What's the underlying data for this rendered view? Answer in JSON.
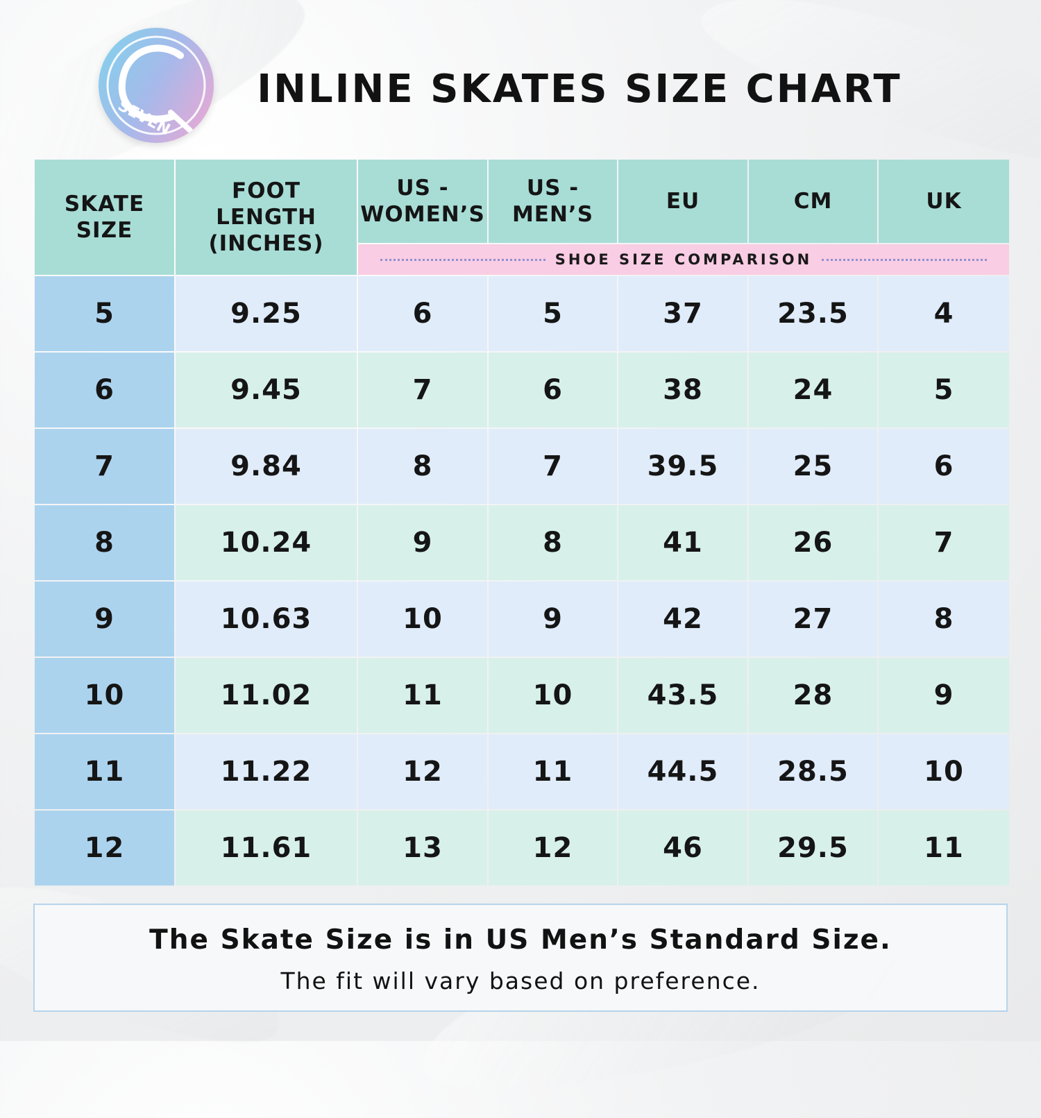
{
  "title": "INLINE SKATES SIZE CHART",
  "logo": {
    "icon": "seven-brand-logo",
    "text": "SEVEN"
  },
  "table": {
    "headers": [
      "SKATE SIZE",
      "FOOT LENGTH (INCHES)",
      "US - WOMEN’S",
      "US - MEN’S",
      "EU",
      "CM",
      "UK"
    ],
    "subheader": "SHOE SIZE COMPARISON",
    "rows": [
      [
        "5",
        "9.25",
        "6",
        "5",
        "37",
        "23.5",
        "4"
      ],
      [
        "6",
        "9.45",
        "7",
        "6",
        "38",
        "24",
        "5"
      ],
      [
        "7",
        "9.84",
        "8",
        "7",
        "39.5",
        "25",
        "6"
      ],
      [
        "8",
        "10.24",
        "9",
        "8",
        "41",
        "26",
        "7"
      ],
      [
        "9",
        "10.63",
        "10",
        "9",
        "42",
        "27",
        "8"
      ],
      [
        "10",
        "11.02",
        "11",
        "10",
        "43.5",
        "28",
        "9"
      ],
      [
        "11",
        "11.22",
        "12",
        "11",
        "44.5",
        "28.5",
        "10"
      ],
      [
        "12",
        "11.61",
        "13",
        "12",
        "46",
        "29.5",
        "11"
      ]
    ]
  },
  "footer": {
    "main": "The Skate Size is in US Men’s Standard Size.",
    "sub": "The fit will vary based on preference."
  },
  "colors": {
    "header_bg": "#a8ddd6",
    "subheader_bg": "#f9cde3",
    "skate_col_bg": "#acd3ee",
    "row_blue_bg": "#e0ecfa",
    "row_green_bg": "#d8f0ea"
  }
}
